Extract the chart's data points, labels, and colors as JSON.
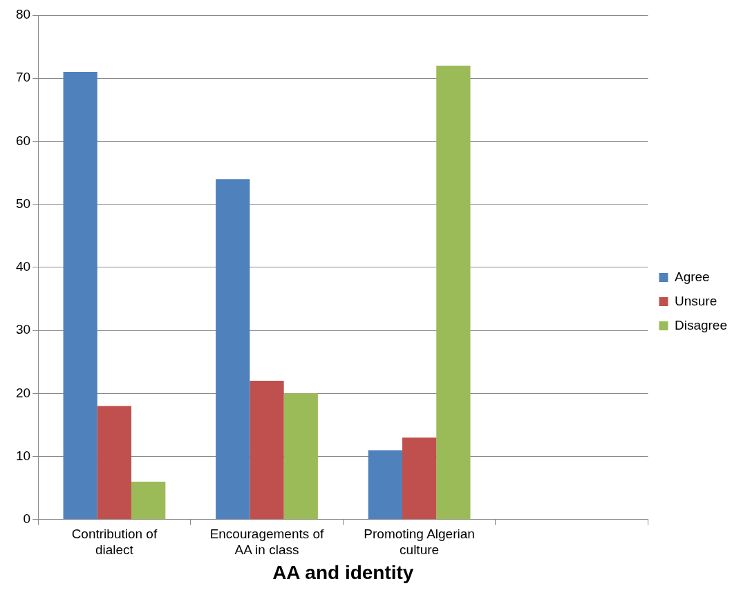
{
  "chart_data": {
    "type": "bar",
    "xlabel": "AA and identity",
    "categories": [
      "Contribution of dialect",
      "Encouragements of AA in class",
      "Promoting Algerian culture",
      null
    ],
    "series": [
      {
        "name": "Agree",
        "color": "#4f81bd",
        "values": [
          71,
          54,
          11,
          null
        ]
      },
      {
        "name": "Unsure",
        "color": "#c0504d",
        "values": [
          18,
          22,
          13,
          null
        ]
      },
      {
        "name": "Disagree",
        "color": "#9bbb59",
        "values": [
          6,
          20,
          72,
          null
        ]
      }
    ],
    "ylim": [
      0,
      80
    ],
    "yticks": [
      0,
      10,
      20,
      30,
      40,
      50,
      60,
      70,
      80
    ],
    "grid": "y",
    "legend": "right"
  }
}
